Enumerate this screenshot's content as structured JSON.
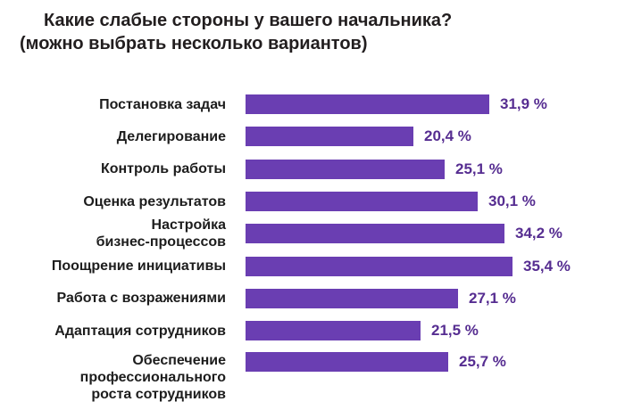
{
  "chart_data": {
    "type": "bar",
    "orientation": "horizontal",
    "title_line1": "Какие слабые стороны у вашего начальника?",
    "title_line2": "(можно выбрать несколько вариантов)",
    "value_suffix": "%",
    "xlim": [
      0,
      40
    ],
    "grid": false,
    "legend": false,
    "bar_color": "#6a3eb2",
    "value_label_color": "#562d91",
    "category_label_color": "#1d1d1d",
    "title_color": "#221e1f",
    "categories": [
      "Постановка задач",
      "Делегирование",
      "Контроль работы",
      "Оценка результатов",
      "Настройка бизнес-процессов",
      "Поощрение инициативы",
      "Работа с возражениями",
      "Адаптация сотрудников",
      "Обеспечение профессионального роста сотрудников"
    ],
    "values": [
      31.9,
      20.4,
      25.1,
      30.1,
      34.2,
      35.4,
      27.1,
      21.5,
      25.7
    ],
    "items": [
      {
        "label": "Постановка задач",
        "value": 31.9,
        "value_label": "31,9 %"
      },
      {
        "label": "Делегирование",
        "value": 20.4,
        "value_label": "20,4 %"
      },
      {
        "label": "Контроль работы",
        "value": 25.1,
        "value_label": "25,1 %"
      },
      {
        "label": "Оценка результатов",
        "value": 30.1,
        "value_label": "30,1 %"
      },
      {
        "label": "Настройка\nбизнес-процессов",
        "value": 34.2,
        "value_label": "34,2 %"
      },
      {
        "label": "Поощрение инициативы",
        "value": 35.4,
        "value_label": "35,4 %"
      },
      {
        "label": "Работа с возражениями",
        "value": 27.1,
        "value_label": "27,1 %"
      },
      {
        "label": "Адаптация сотрудников",
        "value": 21.5,
        "value_label": "21,5 %"
      },
      {
        "label": "Обеспечение\nпрофессионального\nроста сотрудников",
        "value": 25.7,
        "value_label": "25,7 %"
      }
    ]
  }
}
